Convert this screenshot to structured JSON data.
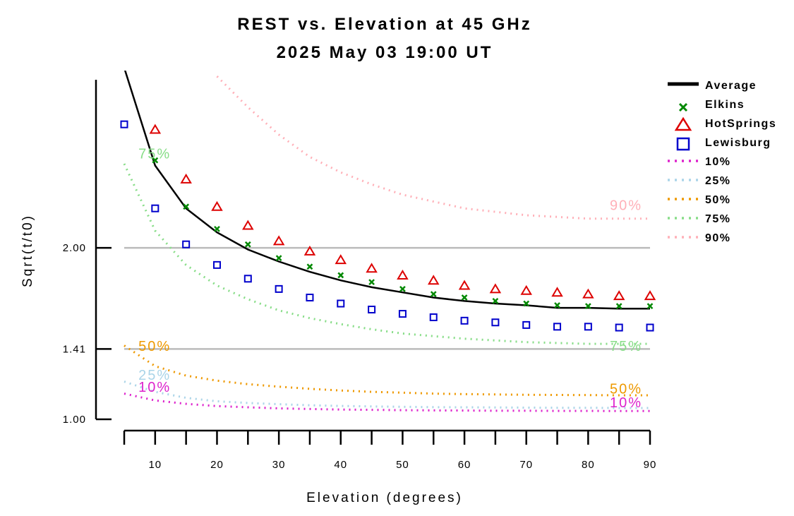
{
  "chart_data": {
    "type": "line",
    "title": "REST vs. Elevation at 45 GHz",
    "subtitle": "2025 May 03 19:00 UT",
    "xlabel": "Elevation (degrees)",
    "ylabel": "Sqrt(t/t0)",
    "xlim": [
      5,
      90
    ],
    "ylim": [
      1.0,
      2.98
    ],
    "x_ticks": [
      {
        "value": 10,
        "label": "10"
      },
      {
        "value": 20,
        "label": "20"
      },
      {
        "value": 30,
        "label": "30"
      },
      {
        "value": 40,
        "label": "40"
      },
      {
        "value": 50,
        "label": "50"
      },
      {
        "value": 60,
        "label": "60"
      },
      {
        "value": 70,
        "label": "70"
      },
      {
        "value": 80,
        "label": "80"
      },
      {
        "value": 90,
        "label": "90"
      }
    ],
    "y_ticks": [
      {
        "value": 1.0,
        "label": "1.00"
      },
      {
        "value": 1.41,
        "label": "1.41"
      },
      {
        "value": 2.0,
        "label": "2.00"
      }
    ],
    "reference_lines": [
      1.41,
      2.0
    ],
    "legend_placement": "right",
    "series": [
      {
        "name": "Average",
        "kind": "line",
        "color": "#000000",
        "x": [
          5,
          10,
          15,
          20,
          25,
          30,
          35,
          40,
          45,
          50,
          55,
          60,
          65,
          70,
          75,
          80,
          85,
          90
        ],
        "y": [
          3.05,
          2.48,
          2.23,
          2.09,
          1.99,
          1.92,
          1.86,
          1.81,
          1.77,
          1.74,
          1.71,
          1.69,
          1.675,
          1.665,
          1.65,
          1.65,
          1.645,
          1.645
        ]
      },
      {
        "name": "Elkins",
        "kind": "x-marker",
        "color": "#008800",
        "x": [
          10,
          15,
          20,
          25,
          30,
          35,
          40,
          45,
          50,
          55,
          60,
          65,
          70,
          75,
          80,
          85,
          90
        ],
        "y": [
          2.51,
          2.24,
          2.11,
          2.02,
          1.94,
          1.89,
          1.84,
          1.8,
          1.76,
          1.73,
          1.71,
          1.69,
          1.675,
          1.665,
          1.66,
          1.66,
          1.66
        ]
      },
      {
        "name": "HotSprings",
        "kind": "triangle-marker",
        "color": "#dd0000",
        "x": [
          10,
          15,
          20,
          25,
          30,
          35,
          40,
          45,
          50,
          55,
          60,
          65,
          70,
          75,
          80,
          85,
          90
        ],
        "y": [
          2.69,
          2.4,
          2.24,
          2.13,
          2.04,
          1.98,
          1.93,
          1.88,
          1.84,
          1.81,
          1.78,
          1.76,
          1.75,
          1.74,
          1.73,
          1.72,
          1.72
        ]
      },
      {
        "name": "Lewisburg",
        "kind": "square-marker",
        "color": "#0000cc",
        "x": [
          5,
          10,
          15,
          20,
          25,
          30,
          35,
          40,
          45,
          50,
          55,
          60,
          65,
          70,
          75,
          80,
          85,
          90
        ],
        "y": [
          2.72,
          2.23,
          2.02,
          1.9,
          1.82,
          1.76,
          1.71,
          1.675,
          1.64,
          1.615,
          1.595,
          1.575,
          1.565,
          1.55,
          1.54,
          1.54,
          1.535,
          1.535
        ]
      },
      {
        "name": "10%",
        "kind": "dotted",
        "color": "#dd22cc",
        "x": [
          5,
          10,
          15,
          20,
          25,
          30,
          35,
          40,
          45,
          50,
          55,
          60,
          65,
          70,
          75,
          80,
          85,
          90
        ],
        "y": [
          1.15,
          1.11,
          1.09,
          1.077,
          1.07,
          1.064,
          1.06,
          1.057,
          1.055,
          1.053,
          1.052,
          1.051,
          1.05,
          1.05,
          1.049,
          1.049,
          1.048,
          1.048
        ]
      },
      {
        "name": "25%",
        "kind": "dotted",
        "color": "#aad4e8",
        "x": [
          5,
          10,
          15,
          20,
          25,
          30,
          35,
          40,
          45,
          50,
          55,
          60,
          65,
          70,
          75,
          80,
          85,
          90
        ],
        "y": [
          1.22,
          1.16,
          1.125,
          1.105,
          1.095,
          1.088,
          1.082,
          1.078,
          1.075,
          1.073,
          1.071,
          1.07,
          1.069,
          1.068,
          1.067,
          1.067,
          1.066,
          1.066
        ]
      },
      {
        "name": "50%",
        "kind": "dotted",
        "color": "#ee9900",
        "x": [
          5,
          10,
          15,
          20,
          25,
          30,
          35,
          40,
          45,
          50,
          55,
          60,
          65,
          70,
          75,
          80,
          85,
          90
        ],
        "y": [
          1.43,
          1.31,
          1.255,
          1.225,
          1.205,
          1.19,
          1.178,
          1.168,
          1.16,
          1.155,
          1.15,
          1.147,
          1.145,
          1.143,
          1.142,
          1.141,
          1.14,
          1.14
        ]
      },
      {
        "name": "75%",
        "kind": "dotted",
        "color": "#88dd88",
        "x": [
          5,
          10,
          15,
          20,
          25,
          30,
          35,
          40,
          45,
          50,
          55,
          60,
          65,
          70,
          75,
          80,
          85,
          90
        ],
        "y": [
          2.49,
          2.1,
          1.9,
          1.78,
          1.7,
          1.635,
          1.59,
          1.555,
          1.525,
          1.5,
          1.485,
          1.47,
          1.46,
          1.45,
          1.445,
          1.44,
          1.44,
          1.44
        ]
      },
      {
        "name": "90%",
        "kind": "dotted",
        "color": "#ffb0b8",
        "x": [
          20,
          25,
          30,
          35,
          40,
          45,
          50,
          55,
          60,
          65,
          70,
          75,
          80,
          85,
          90
        ],
        "y": [
          3.0,
          2.82,
          2.66,
          2.53,
          2.44,
          2.37,
          2.31,
          2.27,
          2.23,
          2.21,
          2.19,
          2.18,
          2.17,
          2.17,
          2.17
        ]
      }
    ],
    "annotations": [
      {
        "text": "75%",
        "x": 7.3,
        "y": 2.52,
        "color": "#88dd88"
      },
      {
        "text": "90%",
        "x": 83.5,
        "y": 2.22,
        "color": "#ffb0b8"
      },
      {
        "text": "75%",
        "x": 83.5,
        "y": 1.4,
        "color": "#88dd88"
      },
      {
        "text": "50%",
        "x": 7.3,
        "y": 1.4,
        "color": "#ee9900"
      },
      {
        "text": "25%",
        "x": 7.3,
        "y": 1.23,
        "color": "#aad4e8"
      },
      {
        "text": "10%",
        "x": 7.3,
        "y": 1.16,
        "color": "#dd22cc"
      },
      {
        "text": "50%",
        "x": 83.5,
        "y": 1.15,
        "color": "#ee9900"
      },
      {
        "text": "10%",
        "x": 83.5,
        "y": 1.07,
        "color": "#dd22cc"
      }
    ]
  }
}
